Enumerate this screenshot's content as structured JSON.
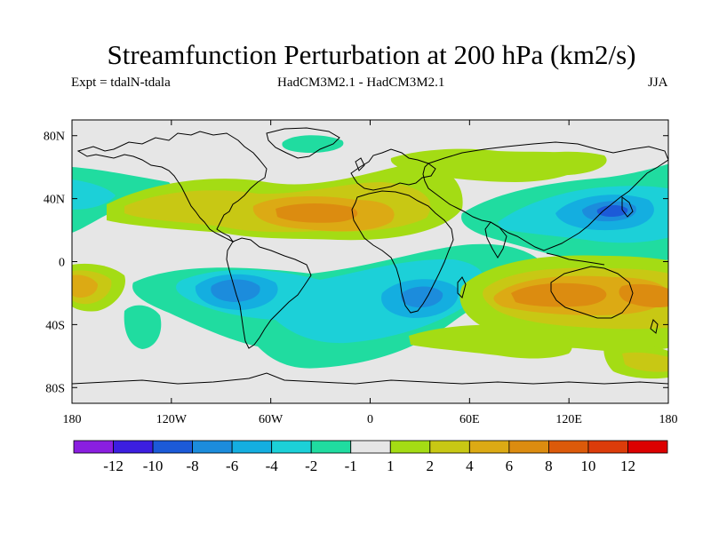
{
  "title": "Streamfunction Perturbation at 200 hPa (km2/s)",
  "expt_label": "Expt = tdalN-tdala",
  "model_label": "HadCM3M2.1 - HadCM3M2.1",
  "season_label": "JJA",
  "lat_labels": [
    "80N",
    "40N",
    "0",
    "40S",
    "80S"
  ],
  "lon_labels": [
    "180",
    "120W",
    "60W",
    "0",
    "60E",
    "120E",
    "180"
  ],
  "colorbar": {
    "colors": [
      "#8a1ee0",
      "#3c1ee0",
      "#1c5ad8",
      "#1c8cdc",
      "#14aee0",
      "#1cd0d8",
      "#20dca0",
      "#e6e6e6",
      "#a4dc14",
      "#c8c814",
      "#dcaa14",
      "#dc8c10",
      "#dc5a0a",
      "#dc3c0a",
      "#dc0000"
    ],
    "labels": [
      "-12",
      "-10",
      "-8",
      "-6",
      "-4",
      "-2",
      "-1",
      "1",
      "2",
      "4",
      "6",
      "8",
      "10",
      "12"
    ]
  },
  "colors": {
    "neutral": "#e6e6e6",
    "c_neg1": "#20dca0",
    "c_neg2": "#1cd0d8",
    "c_neg4": "#14aee0",
    "c_neg6": "#1c8cdc",
    "c_neg8": "#1c5ad8",
    "c_pos1": "#a4dc14",
    "c_pos2": "#c8c814",
    "c_pos4": "#dcaa14",
    "c_pos6": "#dc8c10"
  }
}
